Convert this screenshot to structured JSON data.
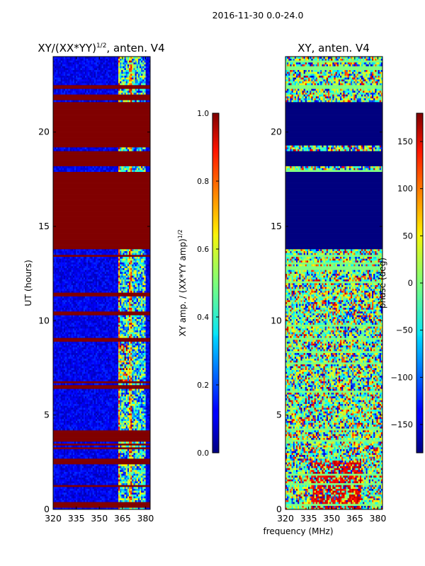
{
  "suptitle": "2016-11-30 0.0-24.0",
  "chart_data": [
    {
      "type": "heatmap",
      "title": "XY/(XX*YY)",
      "title_exponent": "1/2",
      "title_suffix": ", anten. V4",
      "xlabel": "",
      "ylabel": "UT (hours)",
      "xlim": [
        320,
        383
      ],
      "ylim": [
        0,
        24
      ],
      "xticks": [
        "320",
        "335",
        "350",
        "365",
        "380"
      ],
      "xtick_values": [
        320,
        335,
        350,
        365,
        380
      ],
      "yticks": [
        "0",
        "5",
        "10",
        "15",
        "20"
      ],
      "ytick_values": [
        0,
        5,
        10,
        15,
        20
      ],
      "regions_saturated_hours": [
        [
          0.25,
          0.35
        ],
        [
          2.45,
          2.7
        ],
        [
          3.6,
          4.2
        ],
        [
          6.4,
          6.5
        ],
        [
          8.9,
          9.05
        ],
        [
          11.3,
          11.5
        ],
        [
          13.85,
          17.9
        ],
        [
          18.25,
          19.0
        ],
        [
          19.2,
          21.6
        ],
        [
          21.7,
          22.0
        ],
        [
          22.3,
          22.45
        ]
      ],
      "colorbar": {
        "label": "XY amp. / (XX*YY amp)",
        "label_exponent": "1/2",
        "range": [
          0.0,
          1.0
        ],
        "ticks": [
          "0.0",
          "0.2",
          "0.4",
          "0.6",
          "0.8",
          "1.0"
        ],
        "tick_values": [
          0.0,
          0.2,
          0.4,
          0.6,
          0.8,
          1.0
        ]
      }
    },
    {
      "type": "heatmap",
      "title": "XY, anten. V4",
      "xlabel": "frequency (MHz)",
      "ylabel": "",
      "xlim": [
        320,
        383
      ],
      "ylim": [
        0,
        24
      ],
      "xticks": [
        "320",
        "335",
        "350",
        "365",
        "380"
      ],
      "xtick_values": [
        320,
        335,
        350,
        365,
        380
      ],
      "yticks": [
        "0",
        "5",
        "10",
        "15",
        "20"
      ],
      "ytick_values": [
        0,
        5,
        10,
        15,
        20
      ],
      "regions_zero_phase_hours": [
        [
          13.8,
          17.9
        ],
        [
          18.2,
          19.0
        ],
        [
          19.3,
          21.6
        ]
      ],
      "colorbar": {
        "label": "phase (deg)",
        "range": [
          -180,
          180
        ],
        "ticks": [
          "−150",
          "−100",
          "−50",
          "0",
          "50",
          "100",
          "150"
        ],
        "tick_values": [
          -150,
          -100,
          -50,
          0,
          50,
          100,
          150
        ]
      }
    }
  ]
}
